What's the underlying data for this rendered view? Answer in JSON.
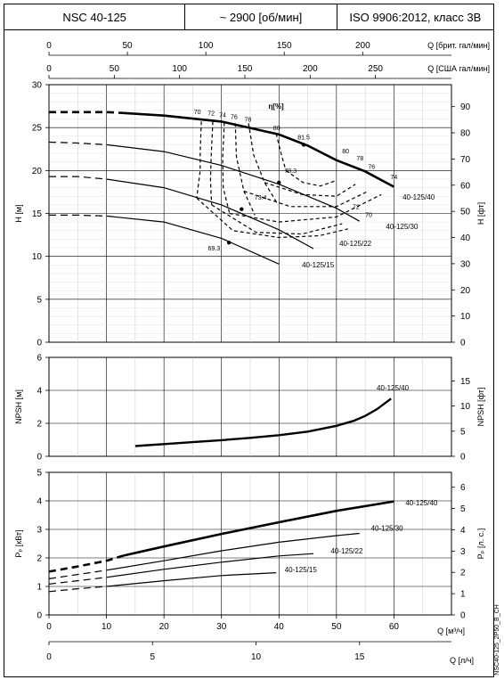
{
  "header": {
    "model": "NSC 40-125",
    "speed": "~ 2900 [об/мин]",
    "standard": "ISO 9906:2012, класс 3B"
  },
  "side_code": "NSC40-125_2P50_B_CH",
  "chart_data": [
    {
      "type": "line",
      "name": "head",
      "xlabel": "Q [м³/ч]",
      "ylabel_left": "H [м]",
      "ylabel_right": "H [фт]",
      "xlim": [
        0,
        70
      ],
      "ylim": [
        0,
        30
      ],
      "ylim_right": [
        0,
        98.4
      ],
      "yticks_left": [
        0,
        5,
        10,
        15,
        20,
        25,
        30
      ],
      "yticks_right": [
        0,
        10,
        20,
        30,
        40,
        50,
        60,
        70,
        80,
        90
      ],
      "top_axis_1": {
        "label": "Q [брит. гал/мин]",
        "ticks": [
          0,
          50,
          100,
          150,
          200
        ],
        "max": 256.6
      },
      "top_axis_2": {
        "label": "Q [США гал/мин]",
        "ticks": [
          0,
          50,
          100,
          150,
          200,
          250
        ],
        "max": 308.2
      },
      "efficiency_label": "η[%]",
      "series": [
        {
          "name": "40-125/40",
          "bold": true,
          "dashed_to": 13,
          "x": [
            0,
            5,
            10,
            13,
            20,
            30,
            40,
            45,
            50,
            55,
            60
          ],
          "y": [
            26.8,
            26.8,
            26.8,
            26.7,
            26.4,
            25.7,
            24.2,
            22.9,
            21.2,
            19.9,
            18.1
          ]
        },
        {
          "name": "40-125/30",
          "dashed_to": 10,
          "x": [
            0,
            5,
            10,
            20,
            30,
            40,
            50,
            54
          ],
          "y": [
            23.3,
            23.2,
            23.0,
            22.2,
            20.6,
            18.4,
            15.6,
            14.1
          ]
        },
        {
          "name": "40-125/22",
          "dashed_to": 10,
          "x": [
            0,
            5,
            10,
            20,
            30,
            40,
            46
          ],
          "y": [
            19.3,
            19.3,
            19.0,
            18.0,
            16.0,
            13.1,
            10.9
          ]
        },
        {
          "name": "40-125/15",
          "dashed_to": 10,
          "x": [
            0,
            5,
            10,
            20,
            30,
            40
          ],
          "y": [
            14.8,
            14.8,
            14.7,
            14.0,
            12.1,
            9.1
          ]
        }
      ],
      "efficiency_contours": [
        {
          "label": "70",
          "x": [
            26.5,
            26.3,
            26.3,
            25.7
          ],
          "y": [
            25.7,
            22.0,
            20.0,
            16.8
          ]
        },
        {
          "label": "72",
          "x": [
            28.5,
            28.2,
            28.1,
            28.3
          ],
          "y": [
            25.7,
            21.5,
            18.8,
            16.0
          ]
        },
        {
          "label": "74",
          "x": [
            30.5,
            30.2,
            30.3,
            31.4
          ],
          "y": [
            25.6,
            21.4,
            18.0,
            15.0
          ]
        },
        {
          "label": "76",
          "x": [
            32.4,
            32.6,
            33.9,
            35.8
          ],
          "y": [
            25.5,
            21.6,
            17.6,
            14.8
          ]
        },
        {
          "label": "78",
          "x": [
            34.7,
            35.6,
            37.5,
            39.5
          ],
          "y": [
            25.5,
            21.8,
            18.6,
            16.4
          ]
        },
        {
          "label": "80",
          "x": [
            39.5,
            40.4,
            41.2
          ],
          "y": [
            24.3,
            21.9,
            20.0
          ]
        },
        {
          "label": "80",
          "x": [
            41.2,
            44.2,
            47.2,
            49.8
          ],
          "y": [
            20.0,
            18.6,
            18.2,
            18.8
          ]
        },
        {
          "label": "78",
          "x": [
            37.5,
            44.0,
            50.0,
            53.3
          ],
          "y": [
            18.6,
            17.2,
            17.0,
            18.4
          ]
        },
        {
          "label": "76",
          "x": [
            33.9,
            42.0,
            50.0,
            55.5
          ],
          "y": [
            17.6,
            15.8,
            15.8,
            17.6
          ]
        },
        {
          "label": "74",
          "x": [
            31.4,
            40.0,
            50.0,
            57.8
          ],
          "y": [
            15.0,
            14.0,
            14.6,
            17.2
          ]
        },
        {
          "label": "72",
          "x": [
            28.3,
            36.0,
            44.0,
            51.0
          ],
          "y": [
            16.0,
            12.8,
            12.6,
            13.8
          ]
        },
        {
          "label": "70",
          "x": [
            25.7,
            32.0,
            40.0,
            47.0,
            52.0
          ],
          "y": [
            16.8,
            13.0,
            12.2,
            12.4,
            13.2
          ]
        }
      ],
      "efficiency_labels": [
        {
          "text": "70",
          "x": 25.8,
          "y": 26.6
        },
        {
          "text": "72",
          "x": 28.2,
          "y": 26.4
        },
        {
          "text": "74",
          "x": 30.2,
          "y": 26.2
        },
        {
          "text": "76",
          "x": 32.2,
          "y": 26.0
        },
        {
          "text": "78",
          "x": 34.6,
          "y": 25.7
        },
        {
          "text": "80",
          "x": 39.6,
          "y": 24.7
        },
        {
          "text": "81.5",
          "x": 44.3,
          "y": 23.6
        },
        {
          "text": "80",
          "x": 51.6,
          "y": 22.0
        },
        {
          "text": "78",
          "x": 54.1,
          "y": 21.2
        },
        {
          "text": "76",
          "x": 56.1,
          "y": 20.2
        },
        {
          "text": "74",
          "x": 60.0,
          "y": 19.0
        },
        {
          "text": "78.3",
          "x": 42.0,
          "y": 19.7
        },
        {
          "text": "73.4",
          "x": 36.8,
          "y": 16.6
        },
        {
          "text": "72",
          "x": 53.4,
          "y": 15.5
        },
        {
          "text": "70",
          "x": 55.6,
          "y": 14.6
        },
        {
          "text": "69.3",
          "x": 28.7,
          "y": 10.7
        }
      ],
      "bep_points": [
        {
          "x": 44.3,
          "y": 23.0
        },
        {
          "x": 40.0,
          "y": 18.6
        },
        {
          "x": 33.5,
          "y": 15.5
        },
        {
          "x": 31.3,
          "y": 11.6
        }
      ],
      "curve_labels": [
        {
          "text": "40-125/40",
          "x": 61.5,
          "y": 16.6
        },
        {
          "text": "40-125/30",
          "x": 58.6,
          "y": 13.2
        },
        {
          "text": "40-125/22",
          "x": 50.5,
          "y": 11.2
        },
        {
          "text": "40-125/15",
          "x": 44.0,
          "y": 8.7
        }
      ]
    },
    {
      "type": "line",
      "name": "npsh",
      "ylabel_left": "NPSH [м]",
      "ylabel_right": "NPSH [фт]",
      "xlim": [
        0,
        70
      ],
      "ylim": [
        0,
        6
      ],
      "yticks_left": [
        0,
        2,
        4,
        6
      ],
      "yticks_right": [
        0,
        5,
        10,
        15
      ],
      "series": [
        {
          "name": "40-125/40",
          "x": [
            15,
            20,
            25,
            30,
            35,
            40,
            45,
            50,
            53,
            55,
            57,
            59.5
          ],
          "y": [
            0.62,
            0.74,
            0.86,
            0.98,
            1.12,
            1.28,
            1.5,
            1.85,
            2.15,
            2.45,
            2.85,
            3.5
          ]
        }
      ],
      "curve_labels": [
        {
          "text": "40-125/40",
          "x": 57.0,
          "y": 4.0
        }
      ]
    },
    {
      "type": "line",
      "name": "power",
      "ylabel_left": "Pₚ [кВт]",
      "ylabel_right": "Pₚ [л. с.]",
      "xlabel": "Q [м³/ч]",
      "xlabel_bottom": "Q [л/ч]",
      "xlim": [
        0,
        70
      ],
      "xticks": [
        0,
        10,
        20,
        30,
        40,
        50,
        60
      ],
      "bottom_ticks": [
        0,
        5,
        10,
        15
      ],
      "bottom_max": 19.44,
      "ylim": [
        0,
        5
      ],
      "yticks_left": [
        0,
        1,
        2,
        3,
        4,
        5
      ],
      "yticks_right": [
        0,
        1,
        2,
        3,
        4,
        5,
        6
      ],
      "ylim_right": [
        0,
        6.7
      ],
      "series": [
        {
          "name": "40-125/40",
          "bold": true,
          "dashed_to": 13,
          "x": [
            0,
            5,
            10,
            13,
            20,
            30,
            40,
            50,
            60
          ],
          "y": [
            1.52,
            1.7,
            1.9,
            2.08,
            2.4,
            2.84,
            3.25,
            3.65,
            3.98
          ]
        },
        {
          "name": "40-125/30",
          "dashed_to": 10,
          "x": [
            0,
            5,
            10,
            20,
            30,
            40,
            50,
            54
          ],
          "y": [
            1.27,
            1.42,
            1.57,
            1.9,
            2.25,
            2.55,
            2.78,
            2.86
          ]
        },
        {
          "name": "40-125/22",
          "dashed_to": 10,
          "x": [
            0,
            5,
            10,
            20,
            30,
            40,
            46
          ],
          "y": [
            1.08,
            1.2,
            1.32,
            1.6,
            1.85,
            2.07,
            2.15
          ]
        },
        {
          "name": "40-125/15",
          "dashed_to": 10,
          "x": [
            0,
            5,
            10,
            20,
            30,
            39.5
          ],
          "y": [
            0.82,
            0.92,
            1.0,
            1.2,
            1.38,
            1.48
          ]
        }
      ],
      "curve_labels": [
        {
          "text": "40-125/40",
          "x": 62.0,
          "y": 3.85
        },
        {
          "text": "40-125/30",
          "x": 56.0,
          "y": 2.95
        },
        {
          "text": "40-125/22",
          "x": 49.0,
          "y": 2.15
        },
        {
          "text": "40-125/15",
          "x": 41.0,
          "y": 1.5
        }
      ]
    }
  ]
}
